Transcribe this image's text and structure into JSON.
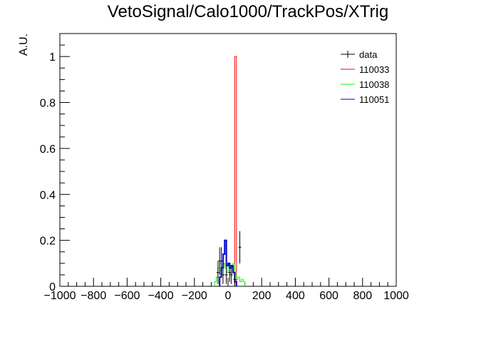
{
  "chart_data": {
    "type": "histogram",
    "title": "VetoSignal/Calo1000/TrackPos/XTrig",
    "xlabel": "",
    "ylabel": "A.U.",
    "xlim": [
      -1000,
      1000
    ],
    "ylim": [
      0,
      1.1
    ],
    "x_ticks": [
      "−1000",
      "−800",
      "−600",
      "−400",
      "−200",
      "0",
      "200",
      "400",
      "600",
      "800",
      "1000"
    ],
    "y_ticks": [
      "0",
      "0.2",
      "0.4",
      "0.6",
      "0.8",
      "1"
    ],
    "legend": {
      "placement": "top-right"
    },
    "series": [
      {
        "name": "data",
        "color": "#000000",
        "style": "points-with-errors",
        "points": [
          {
            "x": -60,
            "y": 0.06,
            "err": 0.05
          },
          {
            "x": -50,
            "y": 0.11,
            "err": 0.06
          },
          {
            "x": -40,
            "y": 0.11,
            "err": 0.06
          },
          {
            "x": -30,
            "y": 0.05,
            "err": 0.04
          },
          {
            "x": -10,
            "y": 0.05,
            "err": 0.04
          },
          {
            "x": 10,
            "y": 0.06,
            "err": 0.04
          },
          {
            "x": 20,
            "y": 0.05,
            "err": 0.04
          },
          {
            "x": 40,
            "y": 0.03,
            "err": 0.03
          },
          {
            "x": 70,
            "y": 0.17,
            "err": 0.07
          }
        ]
      },
      {
        "name": "110033",
        "color": "#ff0000",
        "style": "step",
        "bins": [
          {
            "x0": 40,
            "x1": 50,
            "y": 1.0
          }
        ]
      },
      {
        "name": "110038",
        "color": "#00ff00",
        "style": "step",
        "bins": [
          {
            "x0": -80,
            "x1": -70,
            "y": 0.02
          },
          {
            "x0": -70,
            "x1": -60,
            "y": 0.04
          },
          {
            "x0": -60,
            "x1": -50,
            "y": 0.08
          },
          {
            "x0": -50,
            "x1": -40,
            "y": 0.1
          },
          {
            "x0": -40,
            "x1": -30,
            "y": 0.07
          },
          {
            "x0": -30,
            "x1": -20,
            "y": 0.1
          },
          {
            "x0": -20,
            "x1": -10,
            "y": 0.08
          },
          {
            "x0": -10,
            "x1": 0,
            "y": 0.06
          },
          {
            "x0": 0,
            "x1": 10,
            "y": 0.09
          },
          {
            "x0": 10,
            "x1": 20,
            "y": 0.05
          },
          {
            "x0": 20,
            "x1": 30,
            "y": 0.07
          },
          {
            "x0": 30,
            "x1": 40,
            "y": 0.1
          },
          {
            "x0": 40,
            "x1": 50,
            "y": 0.05
          },
          {
            "x0": 50,
            "x1": 60,
            "y": 0.03
          },
          {
            "x0": 60,
            "x1": 70,
            "y": 0.04
          },
          {
            "x0": 70,
            "x1": 80,
            "y": 0.02
          },
          {
            "x0": 80,
            "x1": 90,
            "y": 0.03
          },
          {
            "x0": 90,
            "x1": 100,
            "y": 0.02
          }
        ]
      },
      {
        "name": "110051",
        "color": "#0000cc",
        "style": "step",
        "bins": [
          {
            "x0": -50,
            "x1": -40,
            "y": 0.04
          },
          {
            "x0": -40,
            "x1": -30,
            "y": 0.08
          },
          {
            "x0": -30,
            "x1": -20,
            "y": 0.14
          },
          {
            "x0": -20,
            "x1": -10,
            "y": 0.2
          },
          {
            "x0": -10,
            "x1": 0,
            "y": 0.09
          },
          {
            "x0": 0,
            "x1": 10,
            "y": 0.1
          },
          {
            "x0": 10,
            "x1": 20,
            "y": 0.08
          },
          {
            "x0": 20,
            "x1": 30,
            "y": 0.09
          },
          {
            "x0": 30,
            "x1": 40,
            "y": 0.06
          },
          {
            "x0": 40,
            "x1": 50,
            "y": 0.02
          }
        ]
      }
    ]
  }
}
